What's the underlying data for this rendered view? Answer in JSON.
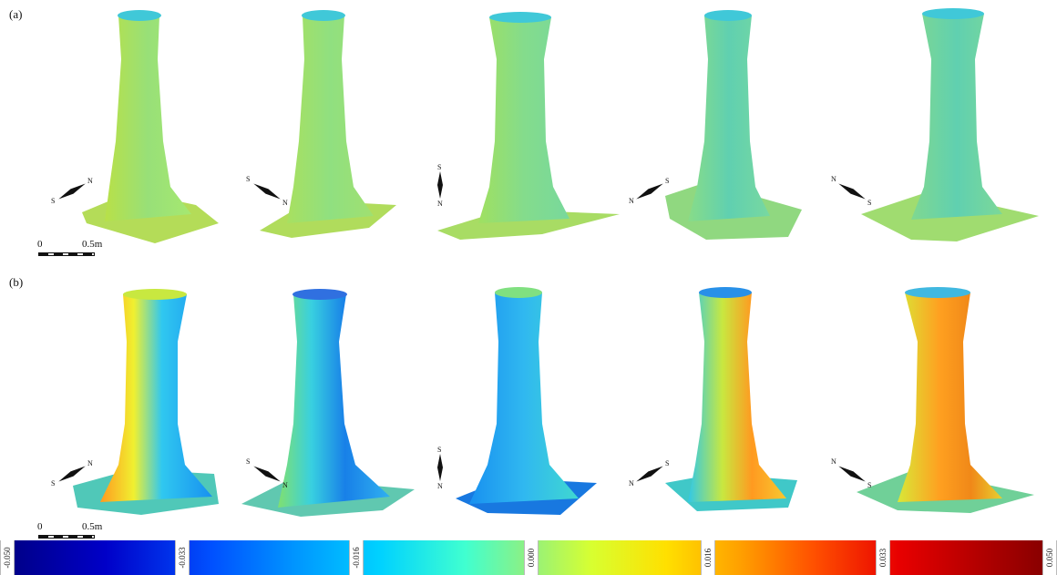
{
  "panels": {
    "a": {
      "label": "(a)"
    },
    "b": {
      "label": "(b)"
    }
  },
  "compass_letters": {
    "south": "S",
    "north": "N"
  },
  "scale_bar": {
    "zero": "0",
    "length": "0.5m"
  },
  "colorbar": {
    "ticks": [
      "-0.050",
      "-0.033",
      "-0.016",
      "0.000",
      "0.016",
      "0.033",
      "0.050"
    ]
  },
  "colors": {
    "deep_blue": "#000080",
    "blue": "#0050ff",
    "cyan": "#00d2ff",
    "green": "#90f080",
    "yellow": "#ffe000",
    "orange": "#ffa000",
    "red": "#e80000",
    "dark_red": "#800000"
  }
}
